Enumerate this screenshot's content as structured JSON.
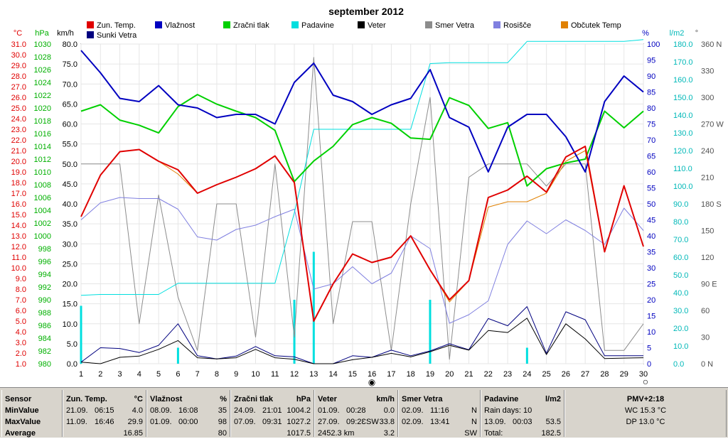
{
  "chart_data": {
    "type": "line",
    "title": "september 2012",
    "x": [
      1,
      2,
      3,
      4,
      5,
      6,
      7,
      8,
      9,
      10,
      11,
      12,
      13,
      14,
      15,
      16,
      17,
      18,
      19,
      20,
      21,
      22,
      23,
      24,
      25,
      26,
      27,
      28,
      29,
      30
    ],
    "legend": [
      "Zun. Temp.",
      "Vlažnost",
      "Zračni tlak",
      "Padavine",
      "Veter",
      "Smer Vetra",
      "Rosišče",
      "Občutek Temp",
      "Sunki Vetra"
    ],
    "axes": {
      "temp": {
        "unit": "°C",
        "min": 1.0,
        "max": 31.0,
        "step": 1.0
      },
      "pressure": {
        "unit": "hPa",
        "min": 980,
        "max": 1030,
        "step": 2
      },
      "wind": {
        "unit": "km/h",
        "min": 0.0,
        "max": 80.0,
        "step": 5.0
      },
      "humidity": {
        "unit": "%",
        "min": 0,
        "max": 100,
        "step": 5
      },
      "rain": {
        "unit": "l/m2",
        "min": 0.0,
        "max": 180.0,
        "step": 10.0
      },
      "direction": {
        "unit": "°",
        "ticks": [
          {
            "v": 0,
            "label": "0 N"
          },
          {
            "v": 30,
            "label": "30"
          },
          {
            "v": 60,
            "label": "60"
          },
          {
            "v": 90,
            "label": "90 E"
          },
          {
            "v": 120,
            "label": "120"
          },
          {
            "v": 150,
            "label": "150"
          },
          {
            "v": 180,
            "label": "180 S"
          },
          {
            "v": 210,
            "label": "210"
          },
          {
            "v": 240,
            "label": "240"
          },
          {
            "v": 270,
            "label": "270 W"
          },
          {
            "v": 300,
            "label": "300"
          },
          {
            "v": 330,
            "label": "330"
          },
          {
            "v": 360,
            "label": "360 N"
          }
        ]
      }
    },
    "grid": true,
    "series": [
      {
        "name": "Zun. Temp.",
        "color": "#e00000",
        "axis": "temp",
        "values": [
          14.8,
          18.7,
          20.9,
          21.1,
          20.0,
          19.2,
          17.0,
          17.8,
          18.5,
          19.3,
          20.5,
          18.0,
          5.0,
          8.5,
          11.3,
          10.5,
          11.0,
          13.0,
          9.8,
          7.0,
          8.8,
          16.6,
          17.3,
          18.6,
          17.1,
          20.4,
          21.4,
          11.5,
          17.7,
          12.0
        ]
      },
      {
        "name": "Vlažnost",
        "color": "#0000c0",
        "axis": "humidity",
        "values": [
          98,
          91,
          83,
          82,
          87,
          81,
          80,
          77,
          78,
          78,
          75,
          88,
          94,
          84,
          82,
          78,
          81,
          83,
          92,
          77,
          74,
          60,
          74,
          78,
          78,
          71,
          60,
          82,
          90,
          85
        ]
      },
      {
        "name": "Zračni tlak",
        "color": "#00d000",
        "axis": "pressure",
        "values": [
          1019.5,
          1020.5,
          1018.1,
          1017.3,
          1016.1,
          1020.2,
          1022.1,
          1020.6,
          1019.5,
          1018.5,
          1016.5,
          1008.5,
          1011.7,
          1014.0,
          1017.4,
          1018.5,
          1017.6,
          1015.3,
          1015.1,
          1021.6,
          1020.4,
          1016.8,
          1017.7,
          1007.8,
          1010.5,
          1011.4,
          1012.0,
          1019.5,
          1016.9,
          1019.5
        ]
      },
      {
        "name": "Padavine",
        "color": "#00dfdf",
        "axis": "rain",
        "values": [
          38.5,
          39.0,
          39.0,
          39.0,
          39.0,
          45.3,
          45.3,
          45.3,
          45.3,
          45.3,
          45.3,
          85.0,
          132.0,
          132.0,
          132.0,
          132.0,
          132.0,
          132.0,
          169.0,
          169.5,
          169.5,
          169.5,
          169.5,
          181.5,
          181.5,
          181.5,
          181.5,
          181.5,
          181.5,
          182.5
        ],
        "bars": [
          [
            1,
            14.5
          ],
          [
            6,
            4.0
          ],
          [
            12,
            16.0
          ],
          [
            13,
            28.0
          ],
          [
            19,
            16.0
          ],
          [
            24,
            4.0
          ]
        ]
      },
      {
        "name": "Veter",
        "color": "#000000",
        "axis": "wind",
        "values": [
          0.4,
          0.0,
          1.6,
          1.9,
          3.6,
          5.8,
          1.5,
          1.2,
          1.5,
          3.6,
          1.5,
          1.1,
          0.0,
          0.0,
          1.0,
          1.6,
          2.6,
          1.7,
          3.0,
          4.6,
          3.4,
          8.3,
          7.8,
          11.4,
          2.3,
          10.0,
          6.2,
          1.3,
          1.4,
          1.5
        ]
      },
      {
        "name": "Smer Vetra",
        "color": "#8c8c8c",
        "axis": "direction",
        "values": [
          225,
          225,
          225,
          45,
          190,
          75,
          15,
          180,
          180,
          30,
          225,
          30,
          345,
          45,
          160,
          160,
          15,
          180,
          300,
          5,
          210,
          225,
          225,
          225,
          200,
          225,
          225,
          15,
          15,
          45
        ]
      },
      {
        "name": "Rosišče",
        "color": "#8080e0",
        "axis": "temp",
        "values": [
          14.5,
          16.1,
          16.6,
          16.5,
          16.5,
          15.5,
          12.9,
          12.6,
          13.6,
          14.0,
          14.8,
          15.5,
          8.0,
          8.5,
          10.1,
          8.5,
          9.5,
          13.0,
          11.8,
          4.8,
          5.6,
          6.9,
          12.2,
          14.4,
          13.2,
          14.5,
          13.5,
          12.2,
          15.6,
          13.5
        ]
      },
      {
        "name": "Občutek Temp",
        "color": "#e08000",
        "axis": "temp",
        "values": [
          14.8,
          18.7,
          20.9,
          21.1,
          20.0,
          18.8,
          17.0,
          17.8,
          18.5,
          19.3,
          20.5,
          18.0,
          5.0,
          8.5,
          11.3,
          10.5,
          11.0,
          13.0,
          9.8,
          6.8,
          8.8,
          15.7,
          16.2,
          16.2,
          17.0,
          20.0,
          21.0,
          11.5,
          17.7,
          12.0
        ]
      },
      {
        "name": "Sunki Vetra",
        "color": "#00007f",
        "axis": "wind",
        "values": [
          0.4,
          4.0,
          3.8,
          2.8,
          4.6,
          10.0,
          2.0,
          1.2,
          1.9,
          4.3,
          2.0,
          1.7,
          0.0,
          0.0,
          2.0,
          1.6,
          3.4,
          2.0,
          3.2,
          5.0,
          3.5,
          11.3,
          9.5,
          14.3,
          2.6,
          13.0,
          11.0,
          2.0,
          2.0,
          2.0
        ]
      }
    ]
  },
  "x_markers": {
    "sun_marker": "◉",
    "moon_marker": "○"
  },
  "stats": {
    "sensor": {
      "label": "Sensor",
      "min": "MinValue",
      "max": "MaxValue",
      "avg": "Average"
    },
    "temp": {
      "label": "Zun. Temp.",
      "unit": "°C",
      "min_date": "21.09.",
      "min_time": "06:15",
      "min_val": "4.0",
      "max_date": "11.09.",
      "max_time": "16:46",
      "max_val": "29.9",
      "avg": "16.85"
    },
    "hum": {
      "label": "Vlažnost",
      "unit": "%",
      "min_date": "08.09.",
      "min_time": "16:08",
      "min_val": "35",
      "max_date": "01.09.",
      "max_time": "00:00",
      "max_val": "98",
      "avg": "80"
    },
    "press": {
      "label": "Zračni tlak",
      "unit": "hPa",
      "min_date": "24.09.",
      "min_time": "21:01",
      "min_val": "1004.2",
      "max_date": "07.09.",
      "max_time": "09:31",
      "max_val": "1027.2",
      "avg": "1017.5"
    },
    "wind": {
      "label": "Veter",
      "unit": "km/h",
      "min_date": "01.09.",
      "min_time": "00:28",
      "min_val": "0.0",
      "max_date": "27.09.",
      "max_time": "09:2ƐSW",
      "max_val": "33.8",
      "avg_dist": "2452.3 km",
      "avg": "3.2"
    },
    "dir": {
      "label": "Smer Vetra",
      "min_date": "02.09.",
      "min_time": "11:16",
      "min_val": "N",
      "max_date": "02.09.",
      "max_time": "13:41",
      "max_val": "N",
      "avg": "SW"
    },
    "rain": {
      "label": "Padavine",
      "unit": "l/m2",
      "row1": "Rain days: 10",
      "max_date": "13.09.",
      "max_time": "00:03",
      "max_val": "53.5",
      "total_label": "Total:",
      "total": "182.5"
    },
    "pmv": {
      "label": "PMV+2:18",
      "wc": "WC 15.3 °C",
      "dp": "DP 13.0 °C"
    }
  }
}
